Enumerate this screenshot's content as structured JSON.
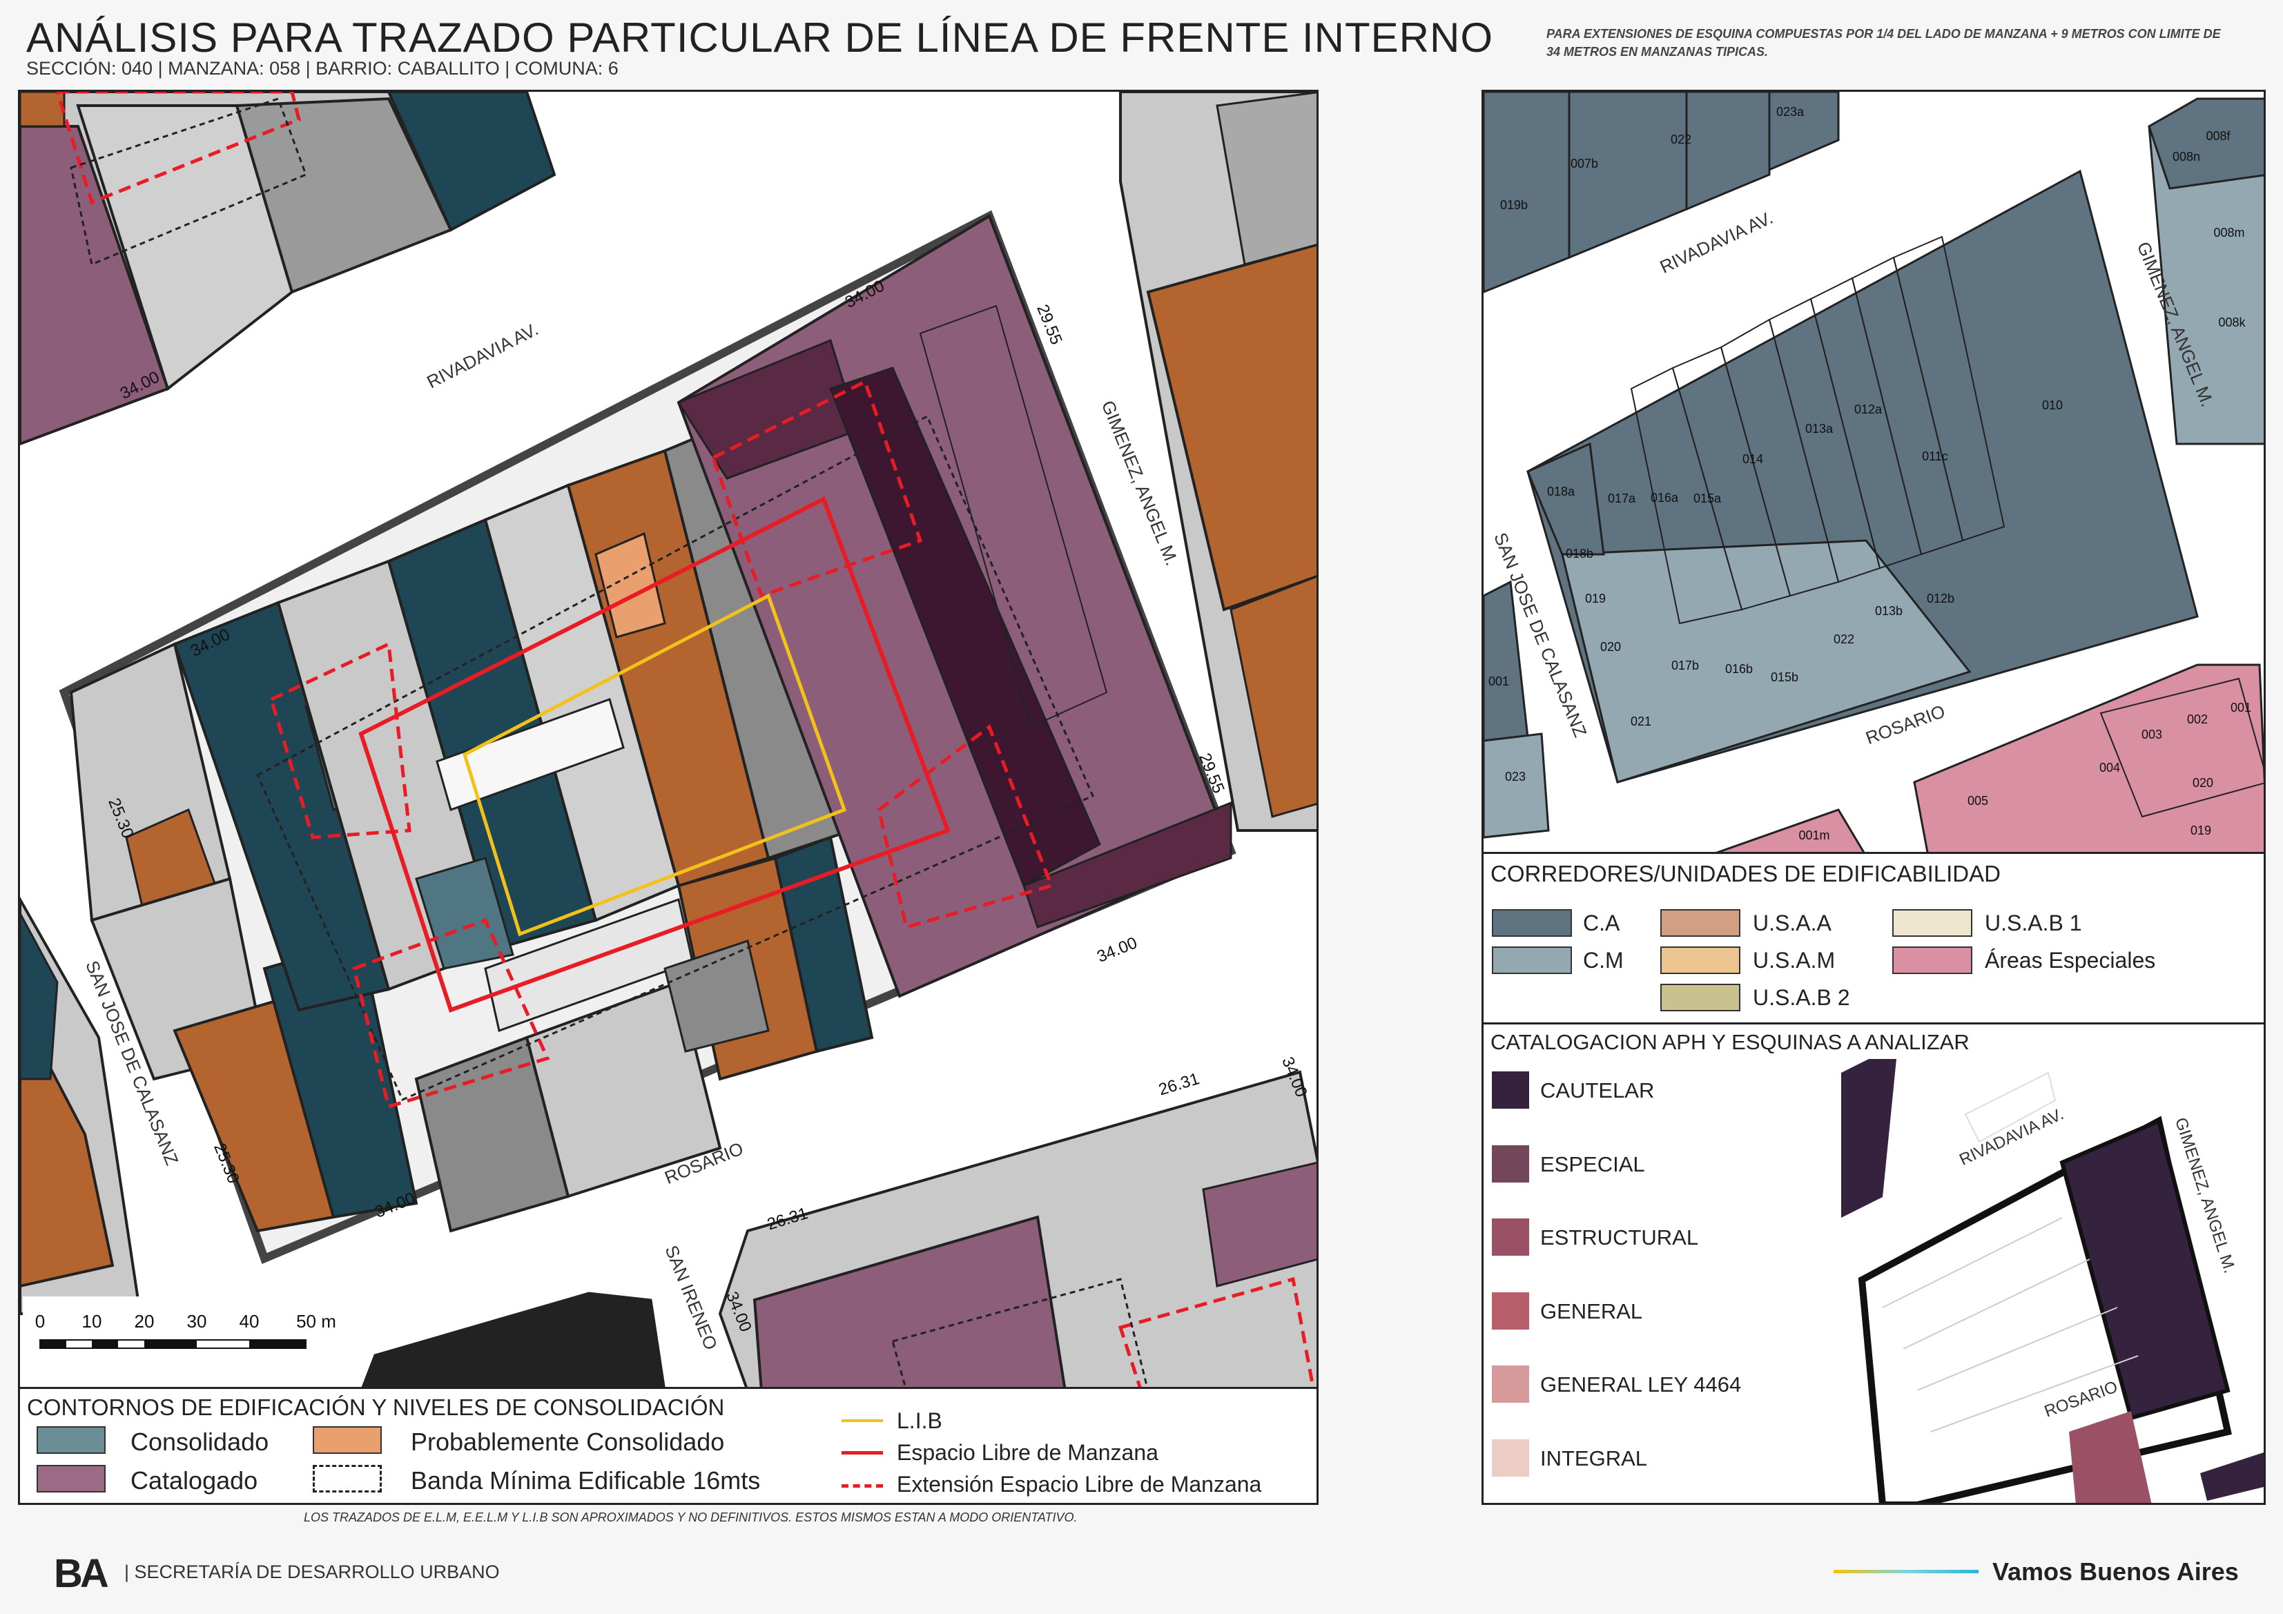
{
  "header": {
    "title": "ANÁLISIS PARA TRAZADO PARTICULAR DE LÍNEA DE FRENTE INTERNO",
    "subtitle": "SECCIÓN: 040 |  MANZANA: 058 | BARRIO: CABALLITO | COMUNA: 6",
    "note": "PARA EXTENSIONES DE ESQUINA COMPUESTAS POR 1/4 DEL LADO DE MANZANA + 9 METROS CON LIMITE DE 34 METROS EN MANZANAS TIPICAS."
  },
  "main_map": {
    "streets": {
      "rivadavia": "RIVADAVIA AV.",
      "gimenez": "GIMENEZ, ANGEL M.",
      "san_jose": "SAN JOSE DE CALASANZ",
      "rosario": "ROSARIO",
      "san_ireneo": "SAN IRENEO"
    },
    "dimensions": {
      "top_left": "34.00",
      "top_right": "34.00",
      "right_top": "29.55",
      "right_bottom": "29.55",
      "bottom_right": "34.00",
      "bottom_left": "34.00",
      "left_top": "25.30",
      "left_bottom": "25.30",
      "nw_block": "34.00",
      "se_block_a": "26.31",
      "se_block_b": "34.00",
      "s_block_a": "26.31",
      "s_block_b": "34.00"
    },
    "scale": {
      "labels": [
        "0",
        "10",
        "20",
        "30",
        "40",
        "50 m"
      ]
    }
  },
  "locator_map": {
    "streets": {
      "rivadavia": "RIVADAVIA AV.",
      "gimenez": "GIMENEZ, ANGEL M.",
      "san_jose": "SAN JOSE DE CALASANZ",
      "rosario": "ROSARIO"
    },
    "parcels_north": [
      "019b",
      "007b",
      "022",
      "023a"
    ],
    "parcels_ne": [
      "008f",
      "008n",
      "008m",
      "008k"
    ],
    "parcels_block": [
      "018a",
      "017a",
      "016a",
      "015a",
      "014",
      "013a",
      "012a",
      "011c",
      "010",
      "018b",
      "019",
      "020",
      "021",
      "017b",
      "016b",
      "015b",
      "022",
      "013b",
      "012b"
    ],
    "parcels_west": [
      "001",
      "023"
    ],
    "parcels_south": [
      "001m",
      "005",
      "004",
      "003",
      "002",
      "001",
      "020",
      "019"
    ]
  },
  "legend_corredores": {
    "title": "CORREDORES/UNIDADES DE EDIFICABILIDAD",
    "items": [
      {
        "label": "C.A",
        "color": "#5f7380"
      },
      {
        "label": "C.M",
        "color": "#93a8b0"
      },
      {
        "label": "U.S.A.A",
        "color": "#d39f82"
      },
      {
        "label": "U.S.A.M",
        "color": "#ecc590"
      },
      {
        "label": "U.S.A.B 2",
        "color": "#c9c28f"
      },
      {
        "label": "U.S.A.B 1",
        "color": "#efe6cf"
      },
      {
        "label": "Áreas Especiales",
        "color": "#d990a3"
      }
    ]
  },
  "legend_catalogacion": {
    "title": "CATALOGACION APH Y ESQUINAS A ANALIZAR",
    "items": [
      {
        "label": "CAUTELAR",
        "color": "#34223f"
      },
      {
        "label": "ESPECIAL",
        "color": "#734659"
      },
      {
        "label": "ESTRUCTURAL",
        "color": "#9b5165"
      },
      {
        "label": "GENERAL",
        "color": "#b85d6a"
      },
      {
        "label": "GENERAL LEY 4464",
        "color": "#d69a9a"
      },
      {
        "label": "INTEGRAL",
        "color": "#ebcdc5"
      }
    ],
    "inset_streets": {
      "rivadavia": "RIVADAVIA AV.",
      "gimenez": "GIMENEZ, ANGEL M.",
      "rosario": "ROSARIO"
    }
  },
  "legend_main": {
    "title": "CONTORNOS DE EDIFICACIÓN Y NIVELES DE CONSOLIDACIÓN",
    "consolidado": "Consolidado",
    "probablemente": "Probablemente Consolidado",
    "catalogado": "Catalogado",
    "banda": "Banda Mínima Edificable 16mts",
    "lib": "L.I.B",
    "elm": "Espacio Libre de Manzana",
    "eelm": "Extensión Espacio Libre de Manzana",
    "colors": {
      "consolidado": "#6b8d95",
      "probablemente": "#eaa06e",
      "catalogado": "#9b6b85",
      "lib": "#f2c21a",
      "elm": "#e81c24"
    }
  },
  "footer": {
    "disclaimer": "LOS TRAZADOS DE E.L.M, E.E.L.M Y L.I.B SON APROXIMADOS Y NO DEFINITIVOS. ESTOS MISMOS ESTAN A MODO ORIENTATIVO.",
    "logo": "BA",
    "secretaria": "| SECRETARÍA DE DESARROLLO URBANO",
    "slogan": "Vamos Buenos Aires"
  }
}
